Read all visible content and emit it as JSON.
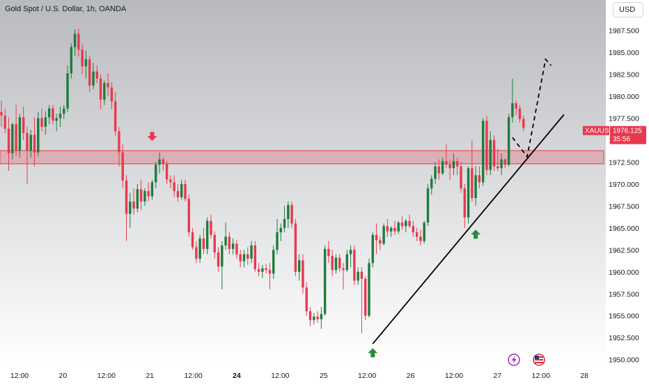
{
  "header": {
    "title": "Gold Spot / U.S. Dollar, 1h, OANDA",
    "currency": "USD"
  },
  "colors": {
    "up": "#1e7b3e",
    "down": "#e8394e",
    "zone": "#e8394e",
    "trend": "#000000",
    "arrow_up": "#2e8b3c",
    "arrow_down": "#e8394e"
  },
  "chart_data": {
    "type": "candlestick",
    "symbol": "XAUUSD",
    "timeframe": "1h",
    "ylim": [
      1949.5,
      1990.0
    ],
    "y_ticks": [
      "1987.500",
      "1985.000",
      "1982.500",
      "1980.000",
      "1977.500",
      "1975.000",
      "1972.500",
      "1970.000",
      "1967.500",
      "1965.000",
      "1962.500",
      "1960.000",
      "1957.500",
      "1955.000",
      "1952.500",
      "1950.000"
    ],
    "x_ticks": [
      {
        "label": "12:00",
        "bold": false
      },
      {
        "label": "20",
        "bold": false
      },
      {
        "label": "12:00",
        "bold": false
      },
      {
        "label": "21",
        "bold": false
      },
      {
        "label": "12:00",
        "bold": false
      },
      {
        "label": "24",
        "bold": true
      },
      {
        "label": "12:00",
        "bold": false
      },
      {
        "label": "25",
        "bold": false
      },
      {
        "label": "12:00",
        "bold": false
      },
      {
        "label": "26",
        "bold": false
      },
      {
        "label": "12:00",
        "bold": false
      },
      {
        "label": "27",
        "bold": false
      },
      {
        "label": "12:00",
        "bold": false
      },
      {
        "label": "28",
        "bold": false
      }
    ],
    "resistance_zone": [
      1972.3,
      1973.8
    ],
    "trendline": {
      "from_price": 1951.8,
      "to_price": 1977.9
    },
    "projection_prices": [
      1975.3,
      1973.1,
      1984.2,
      1983.5
    ],
    "signals": [
      {
        "type": "down",
        "price": 1974.9
      },
      {
        "type": "up",
        "price": 1951.3
      },
      {
        "type": "up",
        "price": 1964.8
      }
    ],
    "price_badge": {
      "symbol": "XAUUSD",
      "price": "1976.125",
      "countdown": "35:56",
      "value": 1976.125
    },
    "candles": [
      [
        1978.2,
        1979.5,
        1976.5,
        1977.8
      ],
      [
        1977.8,
        1978.6,
        1975.8,
        1976.3
      ],
      [
        1976.3,
        1977.6,
        1971.5,
        1973.5
      ],
      [
        1973.5,
        1977.0,
        1972.8,
        1976.8
      ],
      [
        1976.8,
        1979.0,
        1973.2,
        1973.8
      ],
      [
        1973.8,
        1978.0,
        1973.0,
        1977.6
      ],
      [
        1977.6,
        1978.8,
        1975.0,
        1975.8
      ],
      [
        1975.8,
        1976.5,
        1970.0,
        1973.8
      ],
      [
        1973.8,
        1976.2,
        1973.0,
        1975.6
      ],
      [
        1975.6,
        1977.6,
        1972.0,
        1973.6
      ],
      [
        1973.6,
        1978.2,
        1973.2,
        1977.5
      ],
      [
        1977.5,
        1978.6,
        1976.0,
        1976.5
      ],
      [
        1976.5,
        1978.3,
        1975.6,
        1977.6
      ],
      [
        1977.6,
        1979.0,
        1976.8,
        1978.6
      ],
      [
        1978.6,
        1979.0,
        1976.8,
        1977.2
      ],
      [
        1977.2,
        1978.0,
        1976.0,
        1977.5
      ],
      [
        1977.5,
        1978.8,
        1976.5,
        1978.0
      ],
      [
        1978.0,
        1979.0,
        1977.4,
        1978.6
      ],
      [
        1978.6,
        1983.5,
        1978.2,
        1982.6
      ],
      [
        1982.6,
        1986.0,
        1982.0,
        1985.6
      ],
      [
        1985.6,
        1987.6,
        1984.6,
        1987.1
      ],
      [
        1987.1,
        1987.7,
        1984.5,
        1985.3
      ],
      [
        1985.3,
        1986.0,
        1982.5,
        1983.4
      ],
      [
        1983.4,
        1985.2,
        1982.0,
        1984.2
      ],
      [
        1984.2,
        1984.6,
        1980.5,
        1981.2
      ],
      [
        1981.2,
        1983.8,
        1980.8,
        1982.8
      ],
      [
        1982.8,
        1983.5,
        1981.5,
        1982.0
      ],
      [
        1982.0,
        1982.5,
        1978.5,
        1979.6
      ],
      [
        1979.6,
        1981.8,
        1979.0,
        1981.5
      ],
      [
        1981.5,
        1982.6,
        1980.0,
        1981.0
      ],
      [
        1981.0,
        1981.6,
        1978.5,
        1979.4
      ],
      [
        1979.4,
        1980.5,
        1975.5,
        1976.0
      ],
      [
        1976.0,
        1976.5,
        1972.0,
        1973.6
      ],
      [
        1973.6,
        1974.5,
        1969.5,
        1970.4
      ],
      [
        1970.4,
        1971.0,
        1963.5,
        1966.6
      ],
      [
        1966.6,
        1969.0,
        1965.0,
        1968.0
      ],
      [
        1968.0,
        1969.5,
        1966.5,
        1967.2
      ],
      [
        1967.2,
        1970.0,
        1966.8,
        1969.4
      ],
      [
        1969.4,
        1970.5,
        1967.0,
        1968.0
      ],
      [
        1968.0,
        1969.5,
        1967.5,
        1969.2
      ],
      [
        1969.2,
        1970.2,
        1968.0,
        1968.6
      ],
      [
        1968.6,
        1970.5,
        1968.2,
        1970.2
      ],
      [
        1970.2,
        1972.5,
        1969.5,
        1972.2
      ],
      [
        1972.2,
        1973.6,
        1971.2,
        1972.8
      ],
      [
        1972.8,
        1973.0,
        1971.5,
        1972.3
      ],
      [
        1972.3,
        1972.6,
        1970.0,
        1970.5
      ],
      [
        1970.5,
        1971.0,
        1969.5,
        1970.2
      ],
      [
        1970.2,
        1971.0,
        1968.5,
        1969.2
      ],
      [
        1969.2,
        1970.0,
        1968.0,
        1968.5
      ],
      [
        1968.5,
        1970.5,
        1968.2,
        1970.0
      ],
      [
        1970.0,
        1970.5,
        1968.0,
        1968.3
      ],
      [
        1968.3,
        1968.8,
        1964.0,
        1964.5
      ],
      [
        1964.5,
        1965.0,
        1962.5,
        1962.8
      ],
      [
        1962.8,
        1963.5,
        1961.0,
        1961.5
      ],
      [
        1961.5,
        1964.2,
        1961.0,
        1963.8
      ],
      [
        1963.8,
        1965.0,
        1962.0,
        1962.6
      ],
      [
        1962.6,
        1966.2,
        1962.0,
        1965.8
      ],
      [
        1965.8,
        1966.5,
        1963.8,
        1964.2
      ],
      [
        1964.2,
        1964.6,
        1961.5,
        1962.2
      ],
      [
        1962.2,
        1962.8,
        1960.0,
        1960.6
      ],
      [
        1960.6,
        1963.5,
        1958.0,
        1963.0
      ],
      [
        1963.0,
        1965.6,
        1962.5,
        1964.0
      ],
      [
        1964.0,
        1964.5,
        1962.0,
        1962.6
      ],
      [
        1962.6,
        1963.8,
        1962.0,
        1963.2
      ],
      [
        1963.2,
        1963.6,
        1961.5,
        1962.0
      ],
      [
        1962.0,
        1962.5,
        1960.5,
        1961.2
      ],
      [
        1961.2,
        1962.5,
        1960.5,
        1962.0
      ],
      [
        1962.0,
        1962.8,
        1960.8,
        1961.5
      ],
      [
        1961.5,
        1963.5,
        1961.0,
        1963.0
      ],
      [
        1963.0,
        1963.5,
        1960.0,
        1960.3
      ],
      [
        1960.3,
        1961.0,
        1959.5,
        1960.0
      ],
      [
        1960.0,
        1960.8,
        1959.3,
        1960.4
      ],
      [
        1960.4,
        1960.9,
        1959.8,
        1960.2
      ],
      [
        1960.2,
        1961.0,
        1958.0,
        1959.8
      ],
      [
        1959.8,
        1963.0,
        1959.2,
        1962.5
      ],
      [
        1962.5,
        1966.0,
        1962.0,
        1964.5
      ],
      [
        1964.5,
        1965.5,
        1963.5,
        1965.0
      ],
      [
        1965.0,
        1967.5,
        1964.5,
        1966.0
      ],
      [
        1966.0,
        1968.0,
        1965.0,
        1967.6
      ],
      [
        1967.6,
        1968.0,
        1965.0,
        1965.5
      ],
      [
        1965.5,
        1966.0,
        1959.5,
        1960.0
      ],
      [
        1960.0,
        1962.0,
        1959.0,
        1961.3
      ],
      [
        1961.3,
        1962.0,
        1957.5,
        1958.2
      ],
      [
        1958.2,
        1958.8,
        1955.0,
        1955.5
      ],
      [
        1955.5,
        1956.0,
        1953.8,
        1954.5
      ],
      [
        1954.5,
        1955.3,
        1954.0,
        1954.9
      ],
      [
        1954.9,
        1955.5,
        1954.2,
        1954.6
      ],
      [
        1954.6,
        1956.0,
        1953.5,
        1955.2
      ],
      [
        1955.2,
        1963.0,
        1955.0,
        1962.6
      ],
      [
        1962.6,
        1963.5,
        1961.0,
        1961.8
      ],
      [
        1961.8,
        1962.5,
        1959.5,
        1960.2
      ],
      [
        1960.2,
        1962.0,
        1959.8,
        1961.6
      ],
      [
        1961.6,
        1962.0,
        1960.0,
        1960.4
      ],
      [
        1960.4,
        1961.0,
        1958.0,
        1960.2
      ],
      [
        1960.2,
        1962.5,
        1960.0,
        1962.0
      ],
      [
        1962.0,
        1963.0,
        1960.5,
        1962.5
      ],
      [
        1962.5,
        1963.0,
        1958.5,
        1959.0
      ],
      [
        1959.0,
        1960.5,
        1958.5,
        1960.0
      ],
      [
        1960.0,
        1960.5,
        1953.0,
        1959.2
      ],
      [
        1959.2,
        1959.5,
        1954.5,
        1955.0
      ],
      [
        1955.0,
        1961.5,
        1954.8,
        1961.0
      ],
      [
        1961.0,
        1964.5,
        1960.5,
        1964.2
      ],
      [
        1964.2,
        1965.5,
        1962.0,
        1963.6
      ],
      [
        1963.6,
        1964.0,
        1962.5,
        1963.2
      ],
      [
        1963.2,
        1965.5,
        1963.0,
        1965.2
      ],
      [
        1965.2,
        1966.0,
        1964.0,
        1964.6
      ],
      [
        1964.6,
        1965.2,
        1964.0,
        1965.0
      ],
      [
        1965.0,
        1965.8,
        1964.2,
        1964.6
      ],
      [
        1964.6,
        1965.8,
        1964.3,
        1965.6
      ],
      [
        1965.6,
        1966.3,
        1964.8,
        1965.2
      ],
      [
        1965.2,
        1966.0,
        1964.5,
        1965.8
      ],
      [
        1965.8,
        1966.5,
        1965.0,
        1965.2
      ],
      [
        1965.2,
        1965.8,
        1964.0,
        1964.5
      ],
      [
        1964.5,
        1965.0,
        1963.5,
        1964.0
      ],
      [
        1964.0,
        1964.8,
        1963.0,
        1963.5
      ],
      [
        1963.5,
        1965.8,
        1963.2,
        1965.6
      ],
      [
        1965.6,
        1970.0,
        1965.2,
        1969.5
      ],
      [
        1969.5,
        1971.0,
        1968.8,
        1970.6
      ],
      [
        1970.6,
        1972.5,
        1970.0,
        1972.0
      ],
      [
        1972.0,
        1972.8,
        1970.5,
        1971.2
      ],
      [
        1971.2,
        1973.0,
        1971.0,
        1972.6
      ],
      [
        1972.6,
        1974.5,
        1971.8,
        1972.2
      ],
      [
        1972.2,
        1972.8,
        1970.5,
        1971.8
      ],
      [
        1971.8,
        1973.5,
        1971.0,
        1972.6
      ],
      [
        1972.6,
        1973.0,
        1971.0,
        1972.0
      ],
      [
        1972.0,
        1972.5,
        1969.0,
        1969.5
      ],
      [
        1969.5,
        1970.0,
        1965.0,
        1966.2
      ],
      [
        1966.2,
        1972.0,
        1965.5,
        1971.8
      ],
      [
        1971.8,
        1975.0,
        1968.0,
        1968.4
      ],
      [
        1968.4,
        1972.0,
        1967.5,
        1971.0
      ],
      [
        1971.0,
        1972.0,
        1969.5,
        1970.2
      ],
      [
        1970.2,
        1977.5,
        1969.8,
        1977.2
      ],
      [
        1977.2,
        1977.8,
        1971.0,
        1971.6
      ],
      [
        1971.6,
        1976.0,
        1971.0,
        1975.0
      ],
      [
        1975.0,
        1975.5,
        1971.5,
        1972.0
      ],
      [
        1972.0,
        1974.0,
        1971.5,
        1971.8
      ],
      [
        1971.8,
        1973.5,
        1971.0,
        1972.8
      ],
      [
        1972.8,
        1972.9,
        1971.8,
        1972.2
      ],
      [
        1972.2,
        1978.0,
        1972.0,
        1977.6
      ],
      [
        1977.6,
        1982.0,
        1977.0,
        1979.2
      ],
      [
        1979.2,
        1979.5,
        1977.8,
        1978.6
      ],
      [
        1978.6,
        1979.0,
        1977.0,
        1977.4
      ],
      [
        1977.4,
        1977.8,
        1976.0,
        1976.4
      ]
    ]
  }
}
